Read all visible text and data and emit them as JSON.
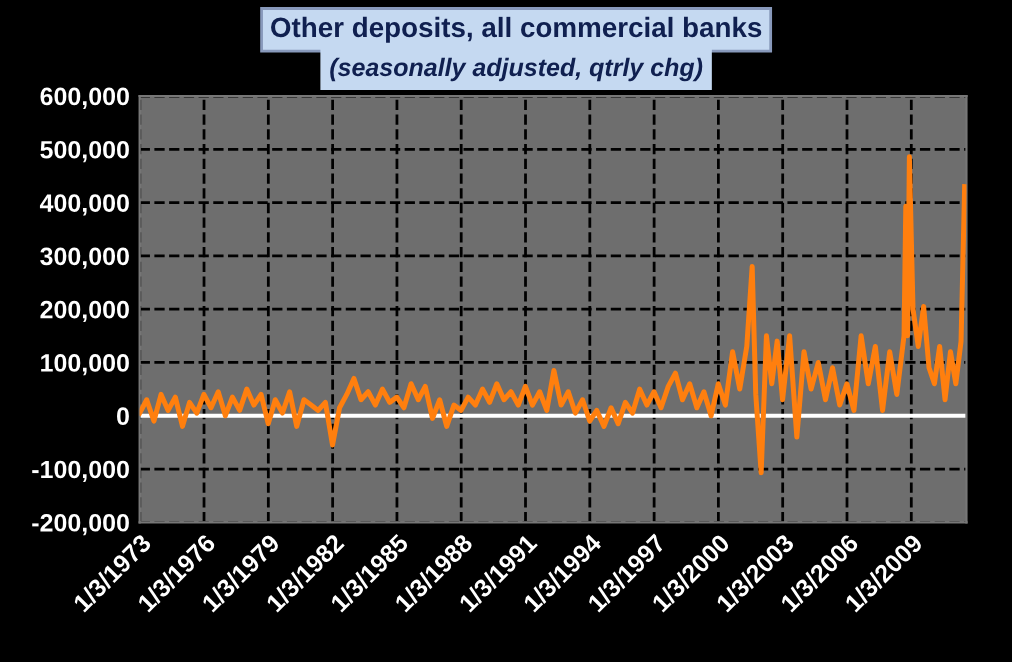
{
  "chart_data": {
    "type": "line",
    "title": "Other deposits, all commercial banks",
    "subtitle": "(seasonally adjusted, qtrly chg)",
    "x": [
      "1973-01",
      "1973-05",
      "1973-09",
      "1974-01",
      "1974-05",
      "1974-09",
      "1975-01",
      "1975-05",
      "1975-09",
      "1976-01",
      "1976-05",
      "1976-09",
      "1977-01",
      "1977-05",
      "1977-09",
      "1978-01",
      "1978-05",
      "1978-09",
      "1979-01",
      "1979-05",
      "1979-09",
      "1980-01",
      "1980-05",
      "1980-09",
      "1981-01",
      "1981-05",
      "1981-09",
      "1982-01",
      "1982-05",
      "1982-09",
      "1983-01",
      "1983-05",
      "1983-09",
      "1984-01",
      "1984-05",
      "1984-09",
      "1985-01",
      "1985-05",
      "1985-09",
      "1986-01",
      "1986-05",
      "1986-09",
      "1987-01",
      "1987-05",
      "1987-09",
      "1988-01",
      "1988-05",
      "1988-09",
      "1989-01",
      "1989-05",
      "1989-09",
      "1990-01",
      "1990-05",
      "1990-09",
      "1991-01",
      "1991-05",
      "1991-09",
      "1992-01",
      "1992-05",
      "1992-09",
      "1993-01",
      "1993-05",
      "1993-09",
      "1994-01",
      "1994-05",
      "1994-09",
      "1995-01",
      "1995-05",
      "1995-09",
      "1996-01",
      "1996-05",
      "1996-09",
      "1997-01",
      "1997-05",
      "1997-09",
      "1998-01",
      "1998-05",
      "1998-09",
      "1999-01",
      "1999-05",
      "1999-09",
      "2000-01",
      "2000-05",
      "2000-09",
      "2001-01",
      "2001-05",
      "2001-08",
      "2001-10",
      "2002-01",
      "2002-04",
      "2002-07",
      "2002-10",
      "2003-01",
      "2003-05",
      "2003-09",
      "2004-01",
      "2004-05",
      "2004-09",
      "2005-01",
      "2005-05",
      "2005-09",
      "2006-01",
      "2006-05",
      "2006-09",
      "2007-01",
      "2007-05",
      "2007-09",
      "2008-01",
      "2008-05",
      "2008-09",
      "2008-10",
      "2008-11",
      "2008-12",
      "2009-02",
      "2009-05",
      "2009-08",
      "2009-11",
      "2010-02",
      "2010-05",
      "2010-08",
      "2010-11",
      "2011-02",
      "2011-05",
      "2011-07"
    ],
    "series": [
      {
        "color": "#ff7f0e",
        "values": [
          5000,
          30000,
          -10000,
          40000,
          10000,
          35000,
          -20000,
          25000,
          5000,
          40000,
          15000,
          45000,
          0,
          35000,
          10000,
          50000,
          20000,
          40000,
          -15000,
          30000,
          5000,
          45000,
          -20000,
          30000,
          20000,
          10000,
          25000,
          -55000,
          15000,
          40000,
          70000,
          30000,
          45000,
          20000,
          50000,
          25000,
          35000,
          15000,
          60000,
          30000,
          55000,
          -5000,
          30000,
          -20000,
          20000,
          10000,
          35000,
          20000,
          50000,
          25000,
          60000,
          30000,
          45000,
          20000,
          55000,
          20000,
          45000,
          10000,
          85000,
          20000,
          45000,
          5000,
          30000,
          -10000,
          10000,
          -20000,
          15000,
          -15000,
          25000,
          5000,
          50000,
          20000,
          45000,
          15000,
          55000,
          80000,
          30000,
          60000,
          15000,
          45000,
          0,
          60000,
          20000,
          120000,
          50000,
          130000,
          280000,
          40000,
          -107000,
          150000,
          60000,
          140000,
          30000,
          150000,
          -40000,
          120000,
          50000,
          100000,
          30000,
          90000,
          20000,
          60000,
          10000,
          150000,
          60000,
          130000,
          10000,
          120000,
          40000,
          150000,
          393000,
          150000,
          486000,
          200000,
          130000,
          205000,
          90000,
          60000,
          130000,
          30000,
          120000,
          60000,
          140000,
          430000
        ]
      }
    ],
    "xlim": [
      "1973-01-01",
      "2011-08-01"
    ],
    "xticks": [
      {
        "value": "1973-01-03",
        "label": "1/3/1973"
      },
      {
        "value": "1976-01-03",
        "label": "1/3/1976"
      },
      {
        "value": "1979-01-03",
        "label": "1/3/1979"
      },
      {
        "value": "1982-01-03",
        "label": "1/3/1982"
      },
      {
        "value": "1985-01-03",
        "label": "1/3/1985"
      },
      {
        "value": "1988-01-03",
        "label": "1/3/1988"
      },
      {
        "value": "1991-01-03",
        "label": "1/3/1991"
      },
      {
        "value": "1994-01-03",
        "label": "1/3/1994"
      },
      {
        "value": "1997-01-03",
        "label": "1/3/1997"
      },
      {
        "value": "2000-01-03",
        "label": "1/3/2000"
      },
      {
        "value": "2003-01-03",
        "label": "1/3/2003"
      },
      {
        "value": "2006-01-03",
        "label": "1/3/2006"
      },
      {
        "value": "2009-01-03",
        "label": "1/3/2009"
      }
    ],
    "ylim": [
      -200000,
      600000
    ],
    "yticks": [
      {
        "value": -200000,
        "label": "-200,000"
      },
      {
        "value": -100000,
        "label": "-100,000"
      },
      {
        "value": 0,
        "label": "0"
      },
      {
        "value": 100000,
        "label": "100,000"
      },
      {
        "value": 200000,
        "label": "200,000"
      },
      {
        "value": 300000,
        "label": "300,000"
      },
      {
        "value": 400000,
        "label": "400,000"
      },
      {
        "value": 500000,
        "label": "500,000"
      },
      {
        "value": 600000,
        "label": "600,000"
      }
    ],
    "ref_lines": [
      {
        "axis": "y",
        "value": 0,
        "color": "#ffffff",
        "line_style": "solid"
      }
    ],
    "grid": true,
    "legend": false,
    "marker": "none",
    "line_style": "solid"
  }
}
